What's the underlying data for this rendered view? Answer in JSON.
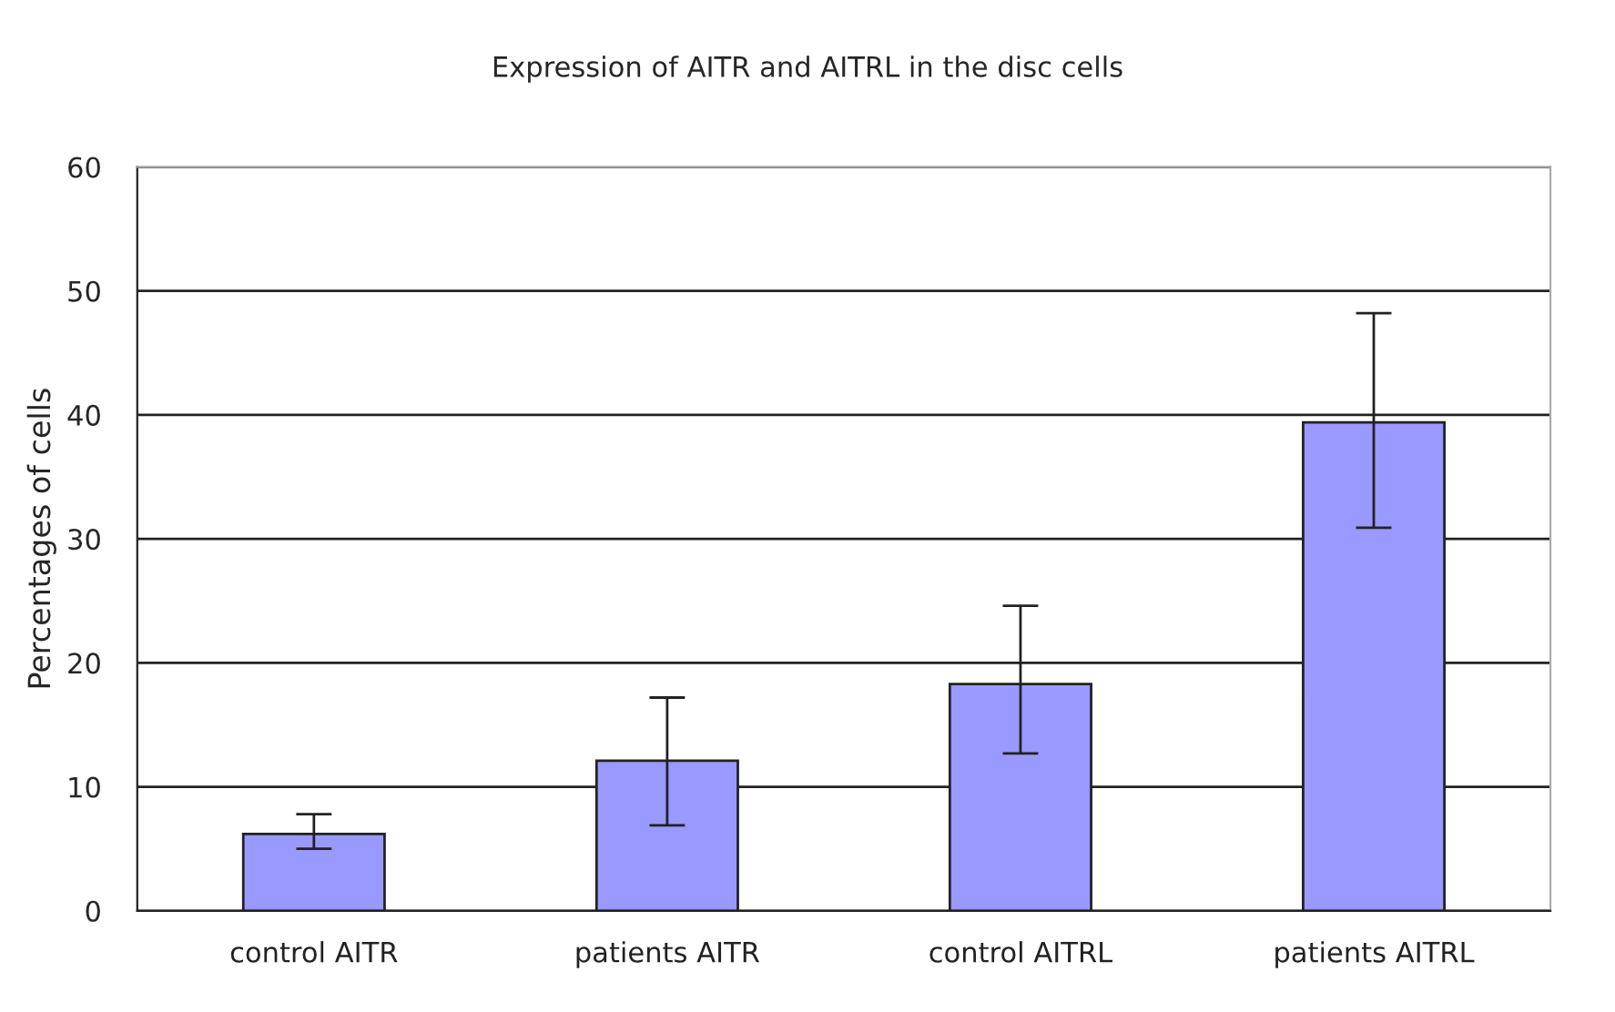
{
  "chart_data": {
    "type": "bar",
    "title": "Expression of AITR and AITRL in the disc cells",
    "ylabel": "Percentages of cells",
    "categories": [
      "control AITR",
      "patients AITR",
      "control AITRL",
      "patients AITRL"
    ],
    "values": [
      6.2,
      12.1,
      18.3,
      39.4
    ],
    "errors": [
      [
        5.0,
        7.8
      ],
      [
        6.9,
        17.2
      ],
      [
        12.7,
        24.6
      ],
      [
        30.9,
        48.2
      ]
    ],
    "color": "#9999ff",
    "ylim": [
      0,
      60
    ],
    "yticks": [
      0,
      10,
      20,
      30,
      40,
      50,
      60
    ],
    "grid": "y"
  }
}
